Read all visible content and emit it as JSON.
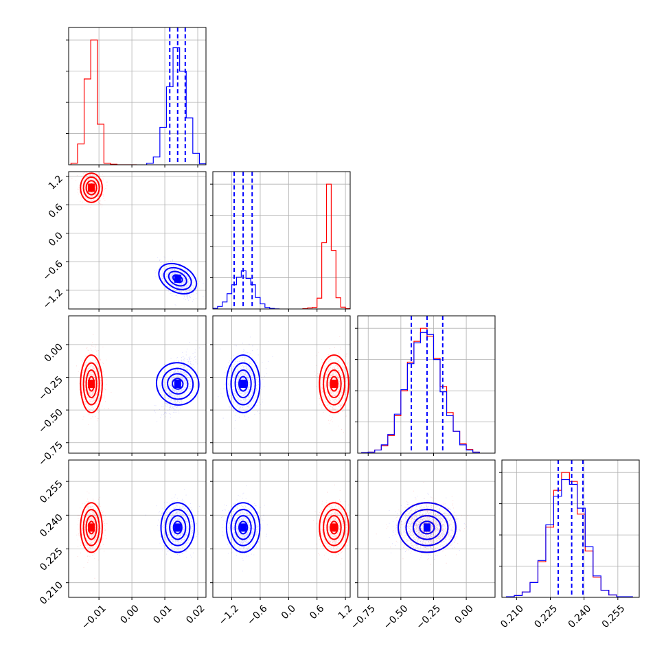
{
  "colors": {
    "series_red": "#ff0000",
    "series_blue": "#0000ff",
    "grid": "#b0b0b0"
  },
  "chart_data": {
    "type": "corner",
    "parameters": [
      {
        "ticks": [
          -0.01,
          0.0,
          0.01,
          0.02
        ],
        "tick_labels": [
          "−0.01",
          "0.00",
          "0.01",
          "0.02"
        ],
        "range": [
          -0.0192,
          0.0225
        ]
      },
      {
        "ticks": [
          -1.2,
          -0.6,
          0.0,
          0.6,
          1.2
        ],
        "tick_labels": [
          "−1.2",
          "−0.6",
          "0.0",
          "0.6",
          "1.2"
        ],
        "range": [
          -1.6,
          1.3
        ]
      },
      {
        "ticks": [
          -0.75,
          -0.5,
          -0.25,
          0.0
        ],
        "tick_labels": [
          "−0.75",
          "−0.50",
          "−0.25",
          "0.00"
        ],
        "range": [
          -0.83,
          0.22
        ]
      },
      {
        "ticks": [
          0.21,
          0.225,
          0.24,
          0.255
        ],
        "tick_labels": [
          "0.210",
          "0.225",
          "0.240",
          "0.255"
        ],
        "range": [
          0.2035,
          0.2645
        ]
      }
    ],
    "series": [
      {
        "name": "",
        "color": "#ff0000",
        "means": [
          -0.0123,
          0.96,
          -0.3,
          0.2345
        ],
        "stds": [
          0.0015,
          0.14,
          0.1,
          0.005
        ],
        "histograms": [
          {
            "edges": [
              -0.0185,
              -0.0165,
              -0.0145,
              -0.0125,
              -0.0105,
              -0.0085,
              -0.0065,
              -0.0045,
              -0.0025,
              -0.0005,
              0.0015
            ],
            "counts": [
              3,
              40,
              165,
              240,
              78,
              3,
              1,
              0,
              0,
              0
            ]
          },
          {
            "edges": [
              0.3,
              0.4,
              0.5,
              0.6,
              0.7,
              0.8,
              0.9,
              1.0,
              1.1,
              1.2,
              1.3
            ],
            "counts": [
              2,
              8,
              12,
              85,
              520,
              980,
              460,
              88,
              14,
              2
            ]
          },
          {
            "edges": [
              -0.8,
              -0.75,
              -0.7,
              -0.65,
              -0.6,
              -0.55,
              -0.5,
              -0.45,
              -0.4,
              -0.35,
              -0.3,
              -0.25,
              -0.2,
              -0.15,
              -0.1,
              -0.05,
              0.0,
              0.05,
              0.1
            ],
            "counts": [
              1,
              2,
              6,
              14,
              34,
              72,
              120,
              175,
              215,
              240,
              225,
              182,
              128,
              78,
              42,
              18,
              7,
              2
            ]
          },
          {
            "edges": [
              0.2055,
              0.209,
              0.2125,
              0.216,
              0.2195,
              0.223,
              0.2265,
              0.23,
              0.2335,
              0.237,
              0.2405,
              0.244,
              0.2475,
              0.251,
              0.2545,
              0.258,
              0.2615
            ],
            "counts": [
              1,
              3,
              9,
              25,
              60,
              118,
              180,
              210,
              195,
              140,
              78,
              34,
              12,
              4,
              1,
              1
            ]
          }
        ]
      },
      {
        "name": "",
        "color": "#0000ff",
        "means": [
          0.0139,
          -0.96,
          -0.3,
          0.2345
        ],
        "stds": [
          0.0023,
          0.16,
          0.1,
          0.005
        ],
        "quantiles": [
          [
            0.0115,
            0.0139,
            0.0162
          ],
          [
            -1.15,
            -0.96,
            -0.77
          ],
          [
            -0.42,
            -0.3,
            -0.18
          ],
          [
            0.2285,
            0.2345,
            0.2395
          ]
        ],
        "histograms": [
          {
            "edges": [
              0.0045,
              0.0065,
              0.0085,
              0.0105,
              0.0125,
              0.0145,
              0.0165,
              0.0185,
              0.0205,
              0.0225
            ],
            "counts": [
              3,
              15,
              72,
              150,
              225,
              180,
              90,
              22,
              2
            ]
          },
          {
            "edges": [
              -1.6,
              -1.5,
              -1.4,
              -1.3,
              -1.2,
              -1.1,
              -1.0,
              -0.9,
              -0.8,
              -0.7,
              -0.6,
              -0.5,
              -0.4,
              -0.3,
              -0.2
            ],
            "counts": [
              5,
              20,
              55,
              120,
              190,
              250,
              300,
              240,
              190,
              90,
              40,
              12,
              4,
              1
            ]
          },
          {
            "edges": [
              -0.8,
              -0.75,
              -0.7,
              -0.65,
              -0.6,
              -0.55,
              -0.5,
              -0.45,
              -0.4,
              -0.35,
              -0.3,
              -0.25,
              -0.2,
              -0.15,
              -0.1,
              -0.05,
              0.0,
              0.05,
              0.1
            ],
            "counts": [
              1,
              2,
              6,
              16,
              36,
              75,
              122,
              172,
              212,
              232,
              228,
              180,
              118,
              72,
              42,
              16,
              6,
              2
            ]
          },
          {
            "edges": [
              0.2055,
              0.209,
              0.2125,
              0.216,
              0.2195,
              0.223,
              0.2265,
              0.23,
              0.2335,
              0.237,
              0.2405,
              0.244,
              0.2475,
              0.251,
              0.2545,
              0.258,
              0.2615
            ],
            "counts": [
              1,
              3,
              9,
              25,
              62,
              122,
              170,
              198,
              190,
              150,
              85,
              36,
              12,
              4,
              1,
              1
            ]
          }
        ]
      }
    ]
  }
}
